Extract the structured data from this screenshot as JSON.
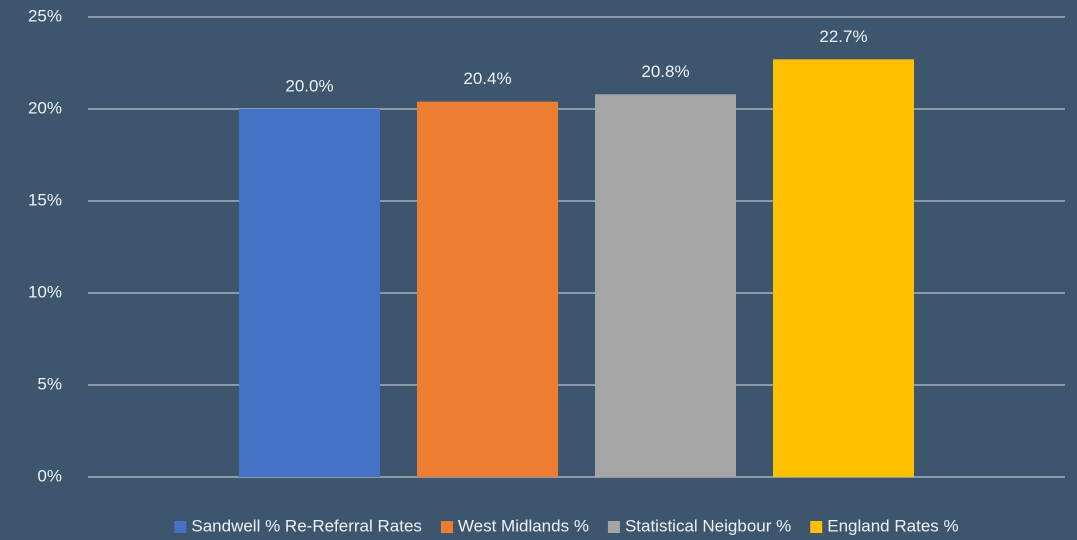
{
  "chart_data": {
    "type": "bar",
    "categories": [
      null
    ],
    "series": [
      {
        "name": "Sandwell % Re-Referral Rates",
        "color": "#4472c4",
        "values": [
          20.0
        ],
        "value_labels": [
          "20.0%"
        ]
      },
      {
        "name": "West Midlands %",
        "color": "#ed7d31",
        "values": [
          20.4
        ],
        "value_labels": [
          "20.4%"
        ]
      },
      {
        "name": "Statistical Neigbour %",
        "color": "#a5a5a5",
        "values": [
          20.8
        ],
        "value_labels": [
          "20.8%"
        ]
      },
      {
        "name": "England Rates %",
        "color": "#ffc000",
        "values": [
          22.7
        ],
        "value_labels": [
          "22.7%"
        ]
      }
    ],
    "ylim": [
      0,
      25
    ],
    "yticks": [
      {
        "value": 0,
        "label": "0%"
      },
      {
        "value": 5,
        "label": "5%"
      },
      {
        "value": 10,
        "label": "10%"
      },
      {
        "value": 15,
        "label": "15%"
      },
      {
        "value": 20,
        "label": "20%"
      },
      {
        "value": 25,
        "label": "25%"
      }
    ],
    "grid": true,
    "legend": "bottom"
  }
}
